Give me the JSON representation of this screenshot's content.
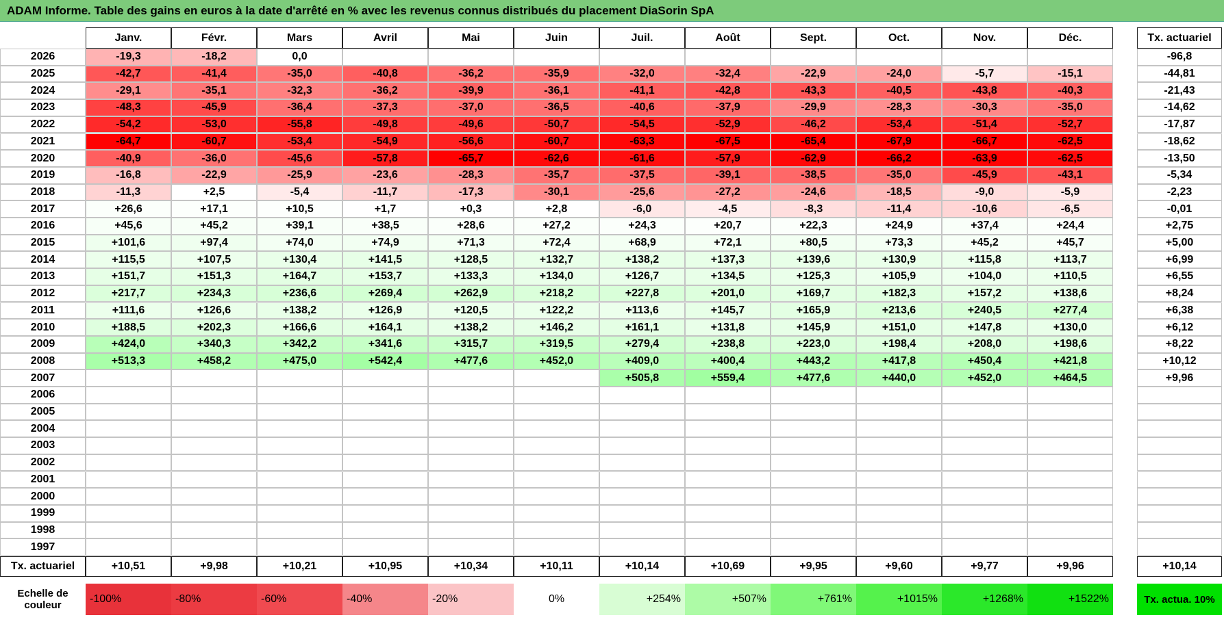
{
  "header": {
    "title": "ADAM Informe. Table des gains en euros à la date d'arrêté en % avec les revenus connus distribués du placement DiaSorin SpA"
  },
  "table": {
    "columns": [
      "Janv.",
      "Févr.",
      "Mars",
      "Avril",
      "Mai",
      "Juin",
      "Juil.",
      "Août",
      "Sept.",
      "Oct.",
      "Nov.",
      "Déc."
    ],
    "total_column": "Tx. actuariel",
    "rows": [
      {
        "year": "2026",
        "cells": [
          "-19,3",
          "-18,2",
          "0,0",
          null,
          null,
          null,
          null,
          null,
          null,
          null,
          null,
          null
        ],
        "rate": "-96,8"
      },
      {
        "year": "2025",
        "cells": [
          "-42,7",
          "-41,4",
          "-35,0",
          "-40,8",
          "-36,2",
          "-35,9",
          "-32,0",
          "-32,4",
          "-22,9",
          "-24,0",
          "-5,7",
          "-15,1"
        ],
        "rate": "-44,81"
      },
      {
        "year": "2024",
        "cells": [
          "-29,1",
          "-35,1",
          "-32,3",
          "-36,2",
          "-39,9",
          "-36,1",
          "-41,1",
          "-42,8",
          "-43,3",
          "-40,5",
          "-43,8",
          "-40,3"
        ],
        "rate": "-21,43"
      },
      {
        "year": "2023",
        "cells": [
          "-48,3",
          "-45,9",
          "-36,4",
          "-37,3",
          "-37,0",
          "-36,5",
          "-40,6",
          "-37,9",
          "-29,9",
          "-28,3",
          "-30,3",
          "-35,0"
        ],
        "rate": "-14,62"
      },
      {
        "year": "2022",
        "cells": [
          "-54,2",
          "-53,0",
          "-55,8",
          "-49,8",
          "-49,6",
          "-50,7",
          "-54,5",
          "-52,9",
          "-46,2",
          "-53,4",
          "-51,4",
          "-52,7"
        ],
        "rate": "-17,87"
      },
      {
        "year": "2021",
        "cells": [
          "-64,7",
          "-60,7",
          "-53,4",
          "-54,9",
          "-56,6",
          "-60,7",
          "-63,3",
          "-67,5",
          "-65,4",
          "-67,9",
          "-66,7",
          "-62,5"
        ],
        "rate": "-18,62"
      },
      {
        "year": "2020",
        "cells": [
          "-40,9",
          "-36,0",
          "-45,6",
          "-57,8",
          "-65,7",
          "-62,6",
          "-61,6",
          "-57,9",
          "-62,9",
          "-66,2",
          "-63,9",
          "-62,5"
        ],
        "rate": "-13,50"
      },
      {
        "year": "2019",
        "cells": [
          "-16,8",
          "-22,9",
          "-25,9",
          "-23,6",
          "-28,3",
          "-35,7",
          "-37,5",
          "-39,1",
          "-38,5",
          "-35,0",
          "-45,9",
          "-43,1"
        ],
        "rate": "-5,34"
      },
      {
        "year": "2018",
        "cells": [
          "-11,3",
          "+2,5",
          "-5,4",
          "-11,7",
          "-17,3",
          "-30,1",
          "-25,6",
          "-27,2",
          "-24,6",
          "-18,5",
          "-9,0",
          "-5,9"
        ],
        "rate": "-2,23"
      },
      {
        "year": "2017",
        "cells": [
          "+26,6",
          "+17,1",
          "+10,5",
          "+1,7",
          "+0,3",
          "+2,8",
          "-6,0",
          "-4,5",
          "-8,3",
          "-11,4",
          "-10,6",
          "-6,5"
        ],
        "rate": "-0,01"
      },
      {
        "year": "2016",
        "cells": [
          "+45,6",
          "+45,2",
          "+39,1",
          "+38,5",
          "+28,6",
          "+27,2",
          "+24,3",
          "+20,7",
          "+22,3",
          "+24,9",
          "+37,4",
          "+24,4"
        ],
        "rate": "+2,75"
      },
      {
        "year": "2015",
        "cells": [
          "+101,6",
          "+97,4",
          "+74,0",
          "+74,9",
          "+71,3",
          "+72,4",
          "+68,9",
          "+72,1",
          "+80,5",
          "+73,3",
          "+45,2",
          "+45,7"
        ],
        "rate": "+5,00"
      },
      {
        "year": "2014",
        "cells": [
          "+115,5",
          "+107,5",
          "+130,4",
          "+141,5",
          "+128,5",
          "+132,7",
          "+138,2",
          "+137,3",
          "+139,6",
          "+130,9",
          "+115,8",
          "+113,7"
        ],
        "rate": "+6,99"
      },
      {
        "year": "2013",
        "cells": [
          "+151,7",
          "+151,3",
          "+164,7",
          "+153,7",
          "+133,3",
          "+134,0",
          "+126,7",
          "+134,5",
          "+125,3",
          "+105,9",
          "+104,0",
          "+110,5"
        ],
        "rate": "+6,55"
      },
      {
        "year": "2012",
        "cells": [
          "+217,7",
          "+234,3",
          "+236,6",
          "+269,4",
          "+262,9",
          "+218,2",
          "+227,8",
          "+201,0",
          "+169,7",
          "+182,3",
          "+157,2",
          "+138,6"
        ],
        "rate": "+8,24"
      },
      {
        "year": "2011",
        "cells": [
          "+111,6",
          "+126,6",
          "+138,2",
          "+126,9",
          "+120,5",
          "+122,2",
          "+113,6",
          "+145,7",
          "+165,9",
          "+213,6",
          "+240,5",
          "+277,4"
        ],
        "rate": "+6,38"
      },
      {
        "year": "2010",
        "cells": [
          "+188,5",
          "+202,3",
          "+166,6",
          "+164,1",
          "+138,2",
          "+146,2",
          "+161,1",
          "+131,8",
          "+145,9",
          "+151,0",
          "+147,8",
          "+130,0"
        ],
        "rate": "+6,12"
      },
      {
        "year": "2009",
        "cells": [
          "+424,0",
          "+340,3",
          "+342,2",
          "+341,6",
          "+315,7",
          "+319,5",
          "+279,4",
          "+238,8",
          "+223,0",
          "+198,4",
          "+208,0",
          "+198,6"
        ],
        "rate": "+8,22"
      },
      {
        "year": "2008",
        "cells": [
          "+513,3",
          "+458,2",
          "+475,0",
          "+542,4",
          "+477,6",
          "+452,0",
          "+409,0",
          "+400,4",
          "+443,2",
          "+417,8",
          "+450,4",
          "+421,8"
        ],
        "rate": "+10,12"
      },
      {
        "year": "2007",
        "cells": [
          null,
          null,
          null,
          null,
          null,
          null,
          "+505,8",
          "+559,4",
          "+477,6",
          "+440,0",
          "+452,0",
          "+464,5"
        ],
        "rate": "+9,96"
      },
      {
        "year": "2006",
        "cells": [
          null,
          null,
          null,
          null,
          null,
          null,
          null,
          null,
          null,
          null,
          null,
          null
        ],
        "rate": null
      },
      {
        "year": "2005",
        "cells": [
          null,
          null,
          null,
          null,
          null,
          null,
          null,
          null,
          null,
          null,
          null,
          null
        ],
        "rate": null
      },
      {
        "year": "2004",
        "cells": [
          null,
          null,
          null,
          null,
          null,
          null,
          null,
          null,
          null,
          null,
          null,
          null
        ],
        "rate": null
      },
      {
        "year": "2003",
        "cells": [
          null,
          null,
          null,
          null,
          null,
          null,
          null,
          null,
          null,
          null,
          null,
          null
        ],
        "rate": null
      },
      {
        "year": "2002",
        "cells": [
          null,
          null,
          null,
          null,
          null,
          null,
          null,
          null,
          null,
          null,
          null,
          null
        ],
        "rate": null
      },
      {
        "year": "2001",
        "cells": [
          null,
          null,
          null,
          null,
          null,
          null,
          null,
          null,
          null,
          null,
          null,
          null
        ],
        "rate": null
      },
      {
        "year": "2000",
        "cells": [
          null,
          null,
          null,
          null,
          null,
          null,
          null,
          null,
          null,
          null,
          null,
          null
        ],
        "rate": null
      },
      {
        "year": "1999",
        "cells": [
          null,
          null,
          null,
          null,
          null,
          null,
          null,
          null,
          null,
          null,
          null,
          null
        ],
        "rate": null
      },
      {
        "year": "1998",
        "cells": [
          null,
          null,
          null,
          null,
          null,
          null,
          null,
          null,
          null,
          null,
          null,
          null
        ],
        "rate": null
      },
      {
        "year": "1997",
        "cells": [
          null,
          null,
          null,
          null,
          null,
          null,
          null,
          null,
          null,
          null,
          null,
          null
        ],
        "rate": null
      }
    ],
    "footer": {
      "label": "Tx. actuariel",
      "cells": [
        "+10,51",
        "+9,98",
        "+10,21",
        "+10,95",
        "+10,34",
        "+10,11",
        "+10,14",
        "+10,69",
        "+9,95",
        "+9,60",
        "+9,77",
        "+9,96"
      ],
      "rate": "+10,14"
    }
  },
  "legend": {
    "label": "Echelle de couleur",
    "items": [
      {
        "label": "-100%",
        "color": "#e8323a"
      },
      {
        "label": "-80%",
        "color": "#ec3b42"
      },
      {
        "label": "-60%",
        "color": "#f04a50"
      },
      {
        "label": "-40%",
        "color": "#f5868a"
      },
      {
        "label": "-20%",
        "color": "#fbc4c6"
      },
      {
        "label": "0%",
        "color": "#ffffff"
      },
      {
        "label": "+254%",
        "color": "#d8fdd4"
      },
      {
        "label": "+507%",
        "color": "#adfba6"
      },
      {
        "label": "+761%",
        "color": "#80f878"
      },
      {
        "label": "+1015%",
        "color": "#55f24c"
      },
      {
        "label": "+1268%",
        "color": "#2be82a"
      },
      {
        "label": "+1522%",
        "color": "#11e011"
      }
    ],
    "rate_item": {
      "label": "Tx. actua. 10%",
      "color": "#00e000"
    }
  }
}
